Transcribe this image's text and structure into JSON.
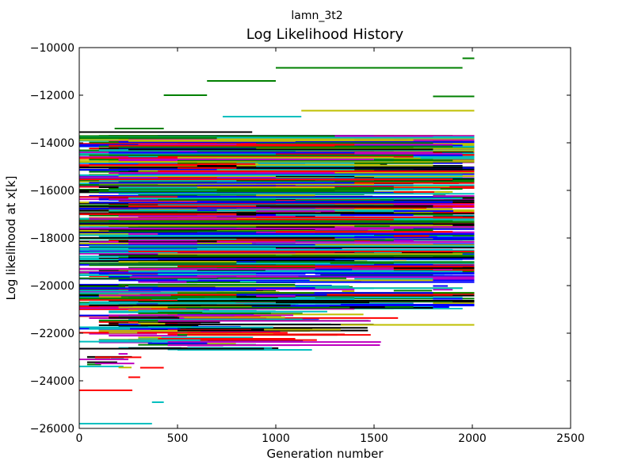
{
  "chart_data": {
    "type": "line",
    "suptitle": "lamn_3t2",
    "title": "Log Likelihood History",
    "xlabel": "Generation number",
    "ylabel": "Log likelihood at x[k]",
    "xlim": [
      0,
      2500
    ],
    "ylim": [
      -26000,
      -10000
    ],
    "xticks": [
      0,
      500,
      1000,
      1500,
      2000,
      2500
    ],
    "yticks": [
      -26000,
      -24000,
      -22000,
      -20000,
      -18000,
      -16000,
      -14000,
      -12000,
      -10000
    ],
    "xtick_labels": [
      "0",
      "500",
      "1000",
      "1500",
      "2000",
      "2500"
    ],
    "ytick_labels": [
      "−26000",
      "−24000",
      "−22000",
      "−20000",
      "−18000",
      "−16000",
      "−14000",
      "−12000",
      "−10000"
    ],
    "grid": false,
    "legend": "none",
    "colors": [
      "#0000ff",
      "#008000",
      "#ff0000",
      "#00bfbf",
      "#bf00bf",
      "#bfbf00",
      "#000000"
    ],
    "notable_segments": [
      {
        "x": [
          1950,
          2010
        ],
        "y": -10450,
        "color": "#008000"
      },
      {
        "x": [
          1000,
          1950
        ],
        "y": -10850,
        "color": "#008000"
      },
      {
        "x": [
          650,
          1000
        ],
        "y": -11400,
        "color": "#008000"
      },
      {
        "x": [
          430,
          650
        ],
        "y": -12000,
        "color": "#008000"
      },
      {
        "x": [
          1800,
          2010
        ],
        "y": -12050,
        "color": "#008000"
      },
      {
        "x": [
          1130,
          2010
        ],
        "y": -12650,
        "color": "#bfbf00"
      },
      {
        "x": [
          730,
          1130
        ],
        "y": -12900,
        "color": "#00bfbf"
      },
      {
        "x": [
          180,
          430
        ],
        "y": -13400,
        "color": "#008000"
      },
      {
        "x": [
          0,
          880
        ],
        "y": -13550,
        "color": "#000000"
      },
      {
        "x": [
          1330,
          2010
        ],
        "y": -20800,
        "color": "#0000ff"
      },
      {
        "x": [
          1330,
          2010
        ],
        "y": -21650,
        "color": "#bfbf00"
      },
      {
        "x": [
          940,
          1330
        ],
        "y": -21850,
        "color": "#bfbf00"
      },
      {
        "x": [
          450,
          1530
        ],
        "y": -22500,
        "color": "#bf00bf"
      },
      {
        "x": [
          0,
          940
        ],
        "y": -22650,
        "color": "#000000"
      },
      {
        "x": [
          0,
          250
        ],
        "y": -23100,
        "color": "#bf00bf"
      },
      {
        "x": [
          310,
          430
        ],
        "y": -23450,
        "color": "#ff0000"
      },
      {
        "x": [
          250,
          310
        ],
        "y": -23850,
        "color": "#ff0000"
      },
      {
        "x": [
          0,
          270
        ],
        "y": -24400,
        "color": "#ff0000"
      },
      {
        "x": [
          370,
          430
        ],
        "y": -24900,
        "color": "#00bfbf"
      },
      {
        "x": [
          0,
          370
        ],
        "y": -25800,
        "color": "#00bfbf"
      }
    ]
  }
}
